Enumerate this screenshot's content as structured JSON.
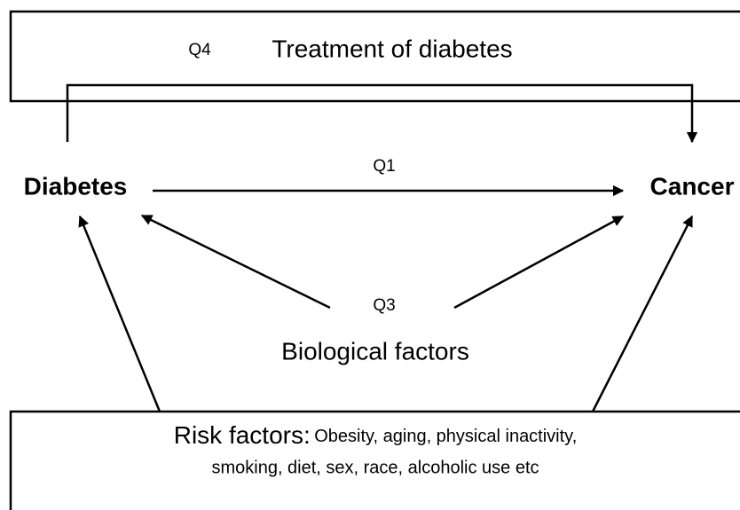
{
  "treatment_box": {
    "label": "Q4",
    "title": "Treatment of diabetes"
  },
  "nodes": [
    {
      "label": "Diabetes"
    },
    {
      "label": "Cancer"
    }
  ],
  "q1_label": "Q1",
  "q3_label": "Q3",
  "biological_factors": "Biological factors",
  "risk_box": {
    "title": "Risk factors:",
    "line1": "Obesity, aging, physical inactivity,",
    "line2": "smoking, diet, sex, race, alcoholic use etc"
  }
}
